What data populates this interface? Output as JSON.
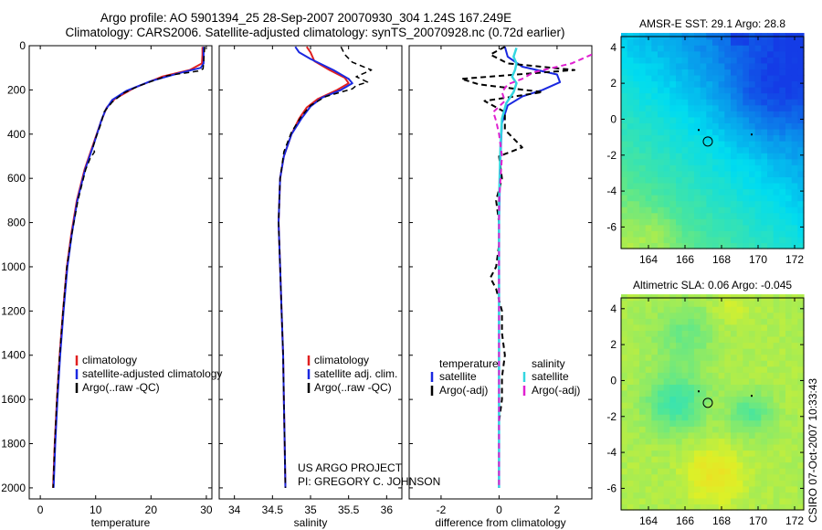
{
  "figure": {
    "title_line_1": "Argo profile: AO 5901394_25 28-Sep-2007 20070930_304 1.24S 167.249E",
    "title_line_2": "Climatology: CARS2006. Satellite-adjusted climatology: synTS_20070928.nc (0.72d earlier)",
    "credit_line_1": "US ARGO PROJECT",
    "credit_line_2": "PI: GREGORY C. JOHNSON",
    "footer": "CSIRO 07-Oct-2007 10:33:43"
  },
  "colors": {
    "climatology": "#e02020",
    "satellite": "#1a28e0",
    "argo": "#000000",
    "satellite_diff": "#33d6e0",
    "argo_adj": "#e020d0"
  },
  "chart_data": [
    {
      "id": "temperature",
      "type": "line",
      "xlabel": "temperature",
      "xlim": [
        -2,
        31
      ],
      "xticks": [
        "0",
        "10",
        "20",
        "30"
      ],
      "xtick_values": [
        0,
        10,
        20,
        30
      ],
      "ylim": [
        0,
        2050
      ],
      "yticks": [
        "0",
        "200",
        "400",
        "600",
        "800",
        "1000",
        "1200",
        "1400",
        "1600",
        "1800",
        "2000"
      ],
      "ytick_values": [
        0,
        200,
        400,
        600,
        800,
        1000,
        1200,
        1400,
        1600,
        1800,
        2000
      ],
      "legend": [
        "climatology",
        "satellite-adjusted climatology",
        "Argo(..raw -QC)"
      ],
      "series": [
        {
          "name": "climatology",
          "color_key": "climatology",
          "dash": "",
          "width": 2,
          "points": [
            [
              29.3,
              5
            ],
            [
              29.3,
              40
            ],
            [
              29.2,
              80
            ],
            [
              27,
              110
            ],
            [
              22,
              140
            ],
            [
              17,
              190
            ],
            [
              13.5,
              240
            ],
            [
              12,
              280
            ],
            [
              11,
              340
            ],
            [
              9.5,
              450
            ],
            [
              8,
              560
            ],
            [
              6.6,
              700
            ],
            [
              5.6,
              850
            ],
            [
              4.8,
              1000
            ],
            [
              4.1,
              1200
            ],
            [
              3.5,
              1400
            ],
            [
              3,
              1600
            ],
            [
              2.6,
              1800
            ],
            [
              2.3,
              2000
            ]
          ]
        },
        {
          "name": "satellite-adjusted climatology",
          "color_key": "satellite",
          "dash": "",
          "width": 2,
          "points": [
            [
              29.5,
              5
            ],
            [
              29.5,
              40
            ],
            [
              29.5,
              80
            ],
            [
              29,
              100
            ],
            [
              25,
              125
            ],
            [
              20,
              160
            ],
            [
              15.5,
              205
            ],
            [
              13,
              245
            ],
            [
              11.8,
              290
            ],
            [
              11,
              340
            ],
            [
              9.6,
              450
            ],
            [
              8.1,
              560
            ],
            [
              6.7,
              700
            ],
            [
              5.7,
              850
            ],
            [
              4.9,
              1000
            ],
            [
              4.2,
              1200
            ],
            [
              3.6,
              1400
            ],
            [
              3.1,
              1600
            ],
            [
              2.7,
              1800
            ],
            [
              2.4,
              2000
            ]
          ]
        },
        {
          "name": "Argo(..raw -QC)",
          "color_key": "argo",
          "dash": "6 4",
          "width": 1.5,
          "points": [
            [
              29.7,
              5
            ],
            [
              29.6,
              40
            ],
            [
              29.5,
              80
            ],
            [
              29.4,
              105
            ],
            [
              28.5,
              115
            ],
            [
              23,
              135
            ],
            [
              18,
              180
            ],
            [
              15,
              215
            ],
            [
              13,
              255
            ],
            [
              11.5,
              300
            ],
            [
              11,
              350
            ],
            [
              10,
              420
            ],
            [
              9.5,
              460
            ],
            [
              9.8,
              480
            ],
            [
              9,
              510
            ],
            [
              8.2,
              560
            ],
            [
              6.8,
              700
            ],
            [
              5.7,
              850
            ],
            [
              4.8,
              1000
            ],
            [
              4.1,
              1200
            ],
            [
              3.5,
              1400
            ],
            [
              3,
              1600
            ],
            [
              2.6,
              1800
            ],
            [
              2.3,
              2000
            ]
          ]
        }
      ]
    },
    {
      "id": "salinity",
      "type": "line",
      "xlabel": "salinity",
      "xlim": [
        33.8,
        36.2
      ],
      "xticks": [
        "34",
        "34.5",
        "35",
        "35.5",
        "36"
      ],
      "xtick_values": [
        34,
        34.5,
        35,
        35.5,
        36
      ],
      "ylim": [
        0,
        2050
      ],
      "legend": [
        "climatology",
        "satellite adj. clim.",
        "Argo(..raw -QC)"
      ],
      "series": [
        {
          "name": "climatology",
          "color_key": "climatology",
          "dash": "",
          "width": 2,
          "points": [
            [
              34.95,
              5
            ],
            [
              35,
              30
            ],
            [
              35.05,
              70
            ],
            [
              35.25,
              110
            ],
            [
              35.45,
              145
            ],
            [
              35.5,
              170
            ],
            [
              35.35,
              200
            ],
            [
              35.1,
              240
            ],
            [
              34.95,
              280
            ],
            [
              34.85,
              330
            ],
            [
              34.75,
              400
            ],
            [
              34.65,
              500
            ],
            [
              34.6,
              600
            ],
            [
              34.58,
              800
            ],
            [
              34.6,
              1000
            ],
            [
              34.62,
              1200
            ],
            [
              34.64,
              1400
            ],
            [
              34.65,
              1600
            ],
            [
              34.66,
              1800
            ],
            [
              34.67,
              2000
            ]
          ]
        },
        {
          "name": "satellite adj. clim.",
          "color_key": "satellite",
          "dash": "",
          "width": 2,
          "points": [
            [
              34.8,
              5
            ],
            [
              34.85,
              30
            ],
            [
              35,
              60
            ],
            [
              35.3,
              110
            ],
            [
              35.5,
              150
            ],
            [
              35.55,
              170
            ],
            [
              35.4,
              200
            ],
            [
              35.15,
              235
            ],
            [
              35,
              275
            ],
            [
              34.88,
              330
            ],
            [
              34.75,
              400
            ],
            [
              34.65,
              500
            ],
            [
              34.6,
              600
            ],
            [
              34.58,
              800
            ],
            [
              34.6,
              1000
            ],
            [
              34.62,
              1200
            ],
            [
              34.64,
              1400
            ],
            [
              34.65,
              1600
            ],
            [
              34.66,
              1800
            ],
            [
              34.67,
              2000
            ]
          ]
        },
        {
          "name": "Argo(..raw -QC)",
          "color_key": "argo",
          "dash": "6 4",
          "width": 1.5,
          "points": [
            [
              35.4,
              5
            ],
            [
              35.45,
              40
            ],
            [
              35.55,
              75
            ],
            [
              35.8,
              110
            ],
            [
              35.6,
              140
            ],
            [
              35.75,
              165
            ],
            [
              35.6,
              180
            ],
            [
              35.55,
              195
            ],
            [
              35.2,
              230
            ],
            [
              35,
              270
            ],
            [
              34.88,
              320
            ],
            [
              34.75,
              390
            ],
            [
              34.65,
              480
            ],
            [
              34.6,
              600
            ],
            [
              34.58,
              800
            ],
            [
              34.6,
              1000
            ],
            [
              34.62,
              1200
            ],
            [
              34.64,
              1400
            ],
            [
              34.65,
              1600
            ],
            [
              34.66,
              1800
            ],
            [
              34.67,
              2000
            ]
          ]
        }
      ]
    },
    {
      "id": "difference",
      "type": "line",
      "xlabel": "difference from climatology",
      "xlim": [
        -3.1,
        3.2
      ],
      "xticks": [
        "-2",
        "0",
        "2"
      ],
      "xtick_values": [
        -2,
        0,
        2
      ],
      "ylim": [
        0,
        2050
      ],
      "legend_left_title": "temperature",
      "legend_right_title": "salinity",
      "legend_left": [
        "satellite",
        "Argo(-adj)"
      ],
      "legend_right": [
        "satellite",
        "Argo(-adj)"
      ],
      "series": [
        {
          "name": "satellite (temperature)",
          "color_key": "satellite",
          "dash": "",
          "width": 2,
          "points": [
            [
              0.2,
              5
            ],
            [
              0.3,
              50
            ],
            [
              0.8,
              95
            ],
            [
              2,
              130
            ],
            [
              2.1,
              165
            ],
            [
              1.5,
              200
            ],
            [
              0.8,
              230
            ],
            [
              0.3,
              270
            ],
            [
              0.1,
              350
            ],
            [
              0.05,
              500
            ],
            [
              0,
              800
            ],
            [
              0,
              1200
            ],
            [
              0,
              1600
            ],
            [
              0,
              2000
            ]
          ]
        },
        {
          "name": "Argo(-adj) (temperature)",
          "color_key": "argo",
          "dash": "6 4",
          "width": 2,
          "points": [
            [
              0.2,
              5
            ],
            [
              -0.3,
              40
            ],
            [
              0.3,
              80
            ],
            [
              2.6,
              110
            ],
            [
              -1.3,
              150
            ],
            [
              -0.7,
              175
            ],
            [
              1.5,
              210
            ],
            [
              -0.5,
              250
            ],
            [
              0.2,
              300
            ],
            [
              0.2,
              380
            ],
            [
              0.8,
              460
            ],
            [
              0,
              500
            ],
            [
              0.1,
              600
            ],
            [
              -0.1,
              700
            ],
            [
              0,
              800
            ],
            [
              0,
              900
            ],
            [
              -0.1,
              1000
            ],
            [
              -0.3,
              1050
            ],
            [
              -0.1,
              1100
            ],
            [
              0.1,
              1200
            ],
            [
              0.1,
              1300
            ],
            [
              0.2,
              1400
            ],
            [
              0.1,
              1500
            ],
            [
              0.1,
              1600
            ],
            [
              0,
              1700
            ],
            [
              0,
              2000
            ]
          ]
        },
        {
          "name": "satellite (salinity)",
          "color_key": "satellite_diff",
          "dash": "",
          "width": 2.5,
          "points": [
            [
              0.6,
              10
            ],
            [
              0.5,
              50
            ],
            [
              0.6,
              80
            ],
            [
              0.55,
              110
            ],
            [
              0.45,
              140
            ],
            [
              0.6,
              170
            ],
            [
              0.5,
              210
            ],
            [
              0.25,
              260
            ],
            [
              0.1,
              330
            ],
            [
              0.05,
              450
            ],
            [
              0,
              700
            ],
            [
              0,
              1100
            ],
            [
              0,
              1500
            ],
            [
              0,
              2000
            ]
          ]
        },
        {
          "name": "Argo(-adj) (salinity)",
          "color_key": "argo_adj",
          "dash": "6 4",
          "width": 2,
          "points": [
            [
              3.2,
              40
            ],
            [
              2.5,
              80
            ],
            [
              1.2,
              120
            ],
            [
              0.8,
              150
            ],
            [
              0.3,
              175
            ],
            [
              0.1,
              210
            ],
            [
              0.2,
              250
            ],
            [
              -0.2,
              300
            ],
            [
              -0.1,
              340
            ],
            [
              0,
              400
            ],
            [
              0.1,
              500
            ],
            [
              0,
              700
            ],
            [
              0,
              1000
            ],
            [
              0,
              1400
            ],
            [
              0,
              2000
            ]
          ]
        }
      ]
    },
    {
      "id": "sst_map",
      "type": "heatmap",
      "title": "AMSR-E SST: 29.1 Argo: 28.8",
      "xlim": [
        162.5,
        172.5
      ],
      "ylim": [
        -7.2,
        4.6
      ],
      "xticks": [
        "164",
        "166",
        "168",
        "170",
        "172"
      ],
      "xtick_values": [
        164,
        166,
        168,
        170,
        172
      ],
      "yticks": [
        "4",
        "2",
        "0",
        "-2",
        "-4",
        "-6"
      ],
      "ytick_values": [
        4,
        2,
        0,
        -2,
        -4,
        -6
      ],
      "argo_marker": [
        167.249,
        -1.24
      ]
    },
    {
      "id": "sla_map",
      "type": "heatmap",
      "title": "Altimetric SLA: 0.06 Argo: -0.045",
      "xlim": [
        162.5,
        172.5
      ],
      "ylim": [
        -7.2,
        4.6
      ],
      "xticks": [
        "164",
        "166",
        "168",
        "170",
        "172"
      ],
      "xtick_values": [
        164,
        166,
        168,
        170,
        172
      ],
      "yticks": [
        "4",
        "2",
        "0",
        "-2",
        "-4",
        "-6"
      ],
      "ytick_values": [
        4,
        2,
        0,
        -2,
        -4,
        -6
      ],
      "argo_marker": [
        167.249,
        -1.24
      ]
    }
  ]
}
